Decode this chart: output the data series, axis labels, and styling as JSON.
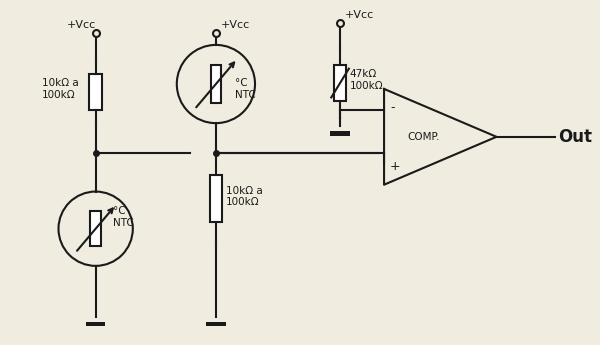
{
  "bg_color": "#f0ece0",
  "line_color": "#1a1a1a",
  "labels": {
    "vcc1": "+Vcc",
    "vcc2": "+Vcc",
    "vcc3": "+Vcc",
    "r1": "10kΩ a\n100kΩ",
    "r2": "10kΩ a\n100kΩ",
    "r3": "47kΩ\n100kΩ",
    "ntc1": "°C\nNTC",
    "ntc2": "°C\nNTC",
    "comp": "COMP.",
    "out": "Out",
    "minus": "-",
    "plus": "+"
  }
}
